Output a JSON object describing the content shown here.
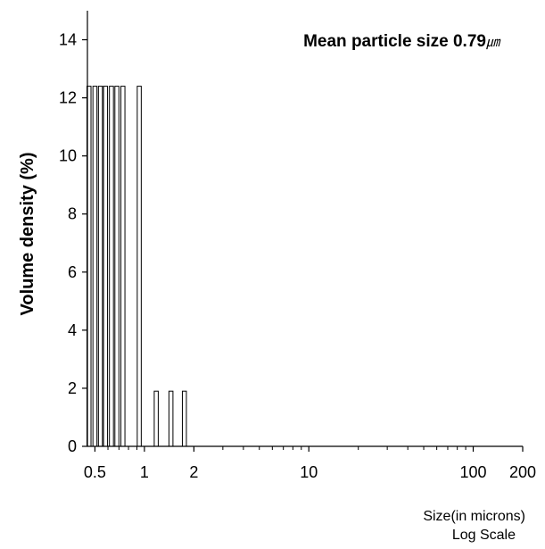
{
  "chart_data": {
    "type": "bar",
    "x_scale": "log",
    "xlim": [
      0.45,
      200
    ],
    "ylim": [
      0,
      15
    ],
    "x_ticks": [
      0.5,
      1,
      2,
      10,
      100,
      200
    ],
    "x_tick_labels": [
      "0.5",
      "1",
      "2",
      "10",
      "100",
      "200"
    ],
    "y_ticks": [
      0,
      2,
      4,
      6,
      8,
      10,
      12,
      14
    ],
    "y_tick_labels": [
      "0",
      "2",
      "4",
      "6",
      "8",
      "10",
      "12",
      "14"
    ],
    "ylabel": "Volume density (%)",
    "xlabel_line1": "Size(in microns)",
    "xlabel_line2": "Log Scale",
    "annotation_text": "Mean particle size 0.79",
    "annotation_unit": "㎛",
    "grid": false,
    "bar_color": "#ffffff",
    "bar_edge_color": "#000000",
    "bars": [
      {
        "x": 0.46,
        "value": 12.4
      },
      {
        "x": 0.5,
        "value": 12.4
      },
      {
        "x": 0.54,
        "value": 12.4
      },
      {
        "x": 0.58,
        "value": 12.4
      },
      {
        "x": 0.63,
        "value": 12.4
      },
      {
        "x": 0.68,
        "value": 12.4
      },
      {
        "x": 0.74,
        "value": 12.4
      },
      {
        "x": 0.93,
        "value": 12.4
      },
      {
        "x": 1.18,
        "value": 1.9
      },
      {
        "x": 1.45,
        "value": 1.9
      },
      {
        "x": 1.75,
        "value": 1.9
      }
    ]
  }
}
